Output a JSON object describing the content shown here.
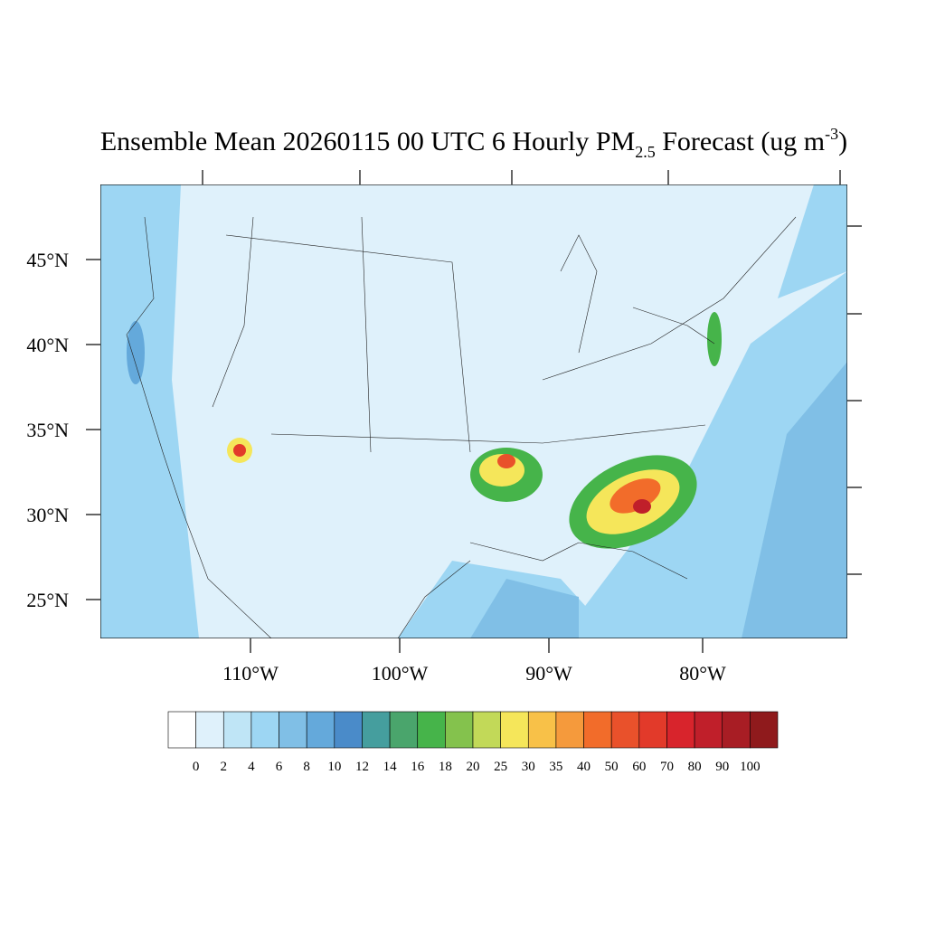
{
  "title": {
    "main": "Ensemble Mean 20260115 00 UTC 6 Hourly PM",
    "subscript": "2.5",
    "after": " Forecast (ug m",
    "superscript": "-3",
    "end": ")"
  },
  "lat_labels": [
    "45°N",
    "40°N",
    "35°N",
    "30°N",
    "25°N"
  ],
  "lon_labels": [
    "110°W",
    "100°W",
    "90°W",
    "80°W"
  ],
  "colorbar": {
    "labels": [
      0,
      2,
      4,
      6,
      8,
      10,
      12,
      14,
      16,
      18,
      20,
      25,
      30,
      35,
      40,
      50,
      60,
      70,
      80,
      90,
      100
    ],
    "colors": [
      "#ffffff",
      "#dff1fb",
      "#bfe5f6",
      "#9dd6f3",
      "#80bfe6",
      "#64a9db",
      "#4a8bc9",
      "#459e9e",
      "#4aa56c",
      "#46b44a",
      "#84c24d",
      "#c2d958",
      "#f5e65a",
      "#f8c148",
      "#f59a3c",
      "#f26c2a",
      "#e9512b",
      "#e23a2a",
      "#d8242c",
      "#c01f2a",
      "#a81d24",
      "#8f1a1c"
    ]
  }
}
